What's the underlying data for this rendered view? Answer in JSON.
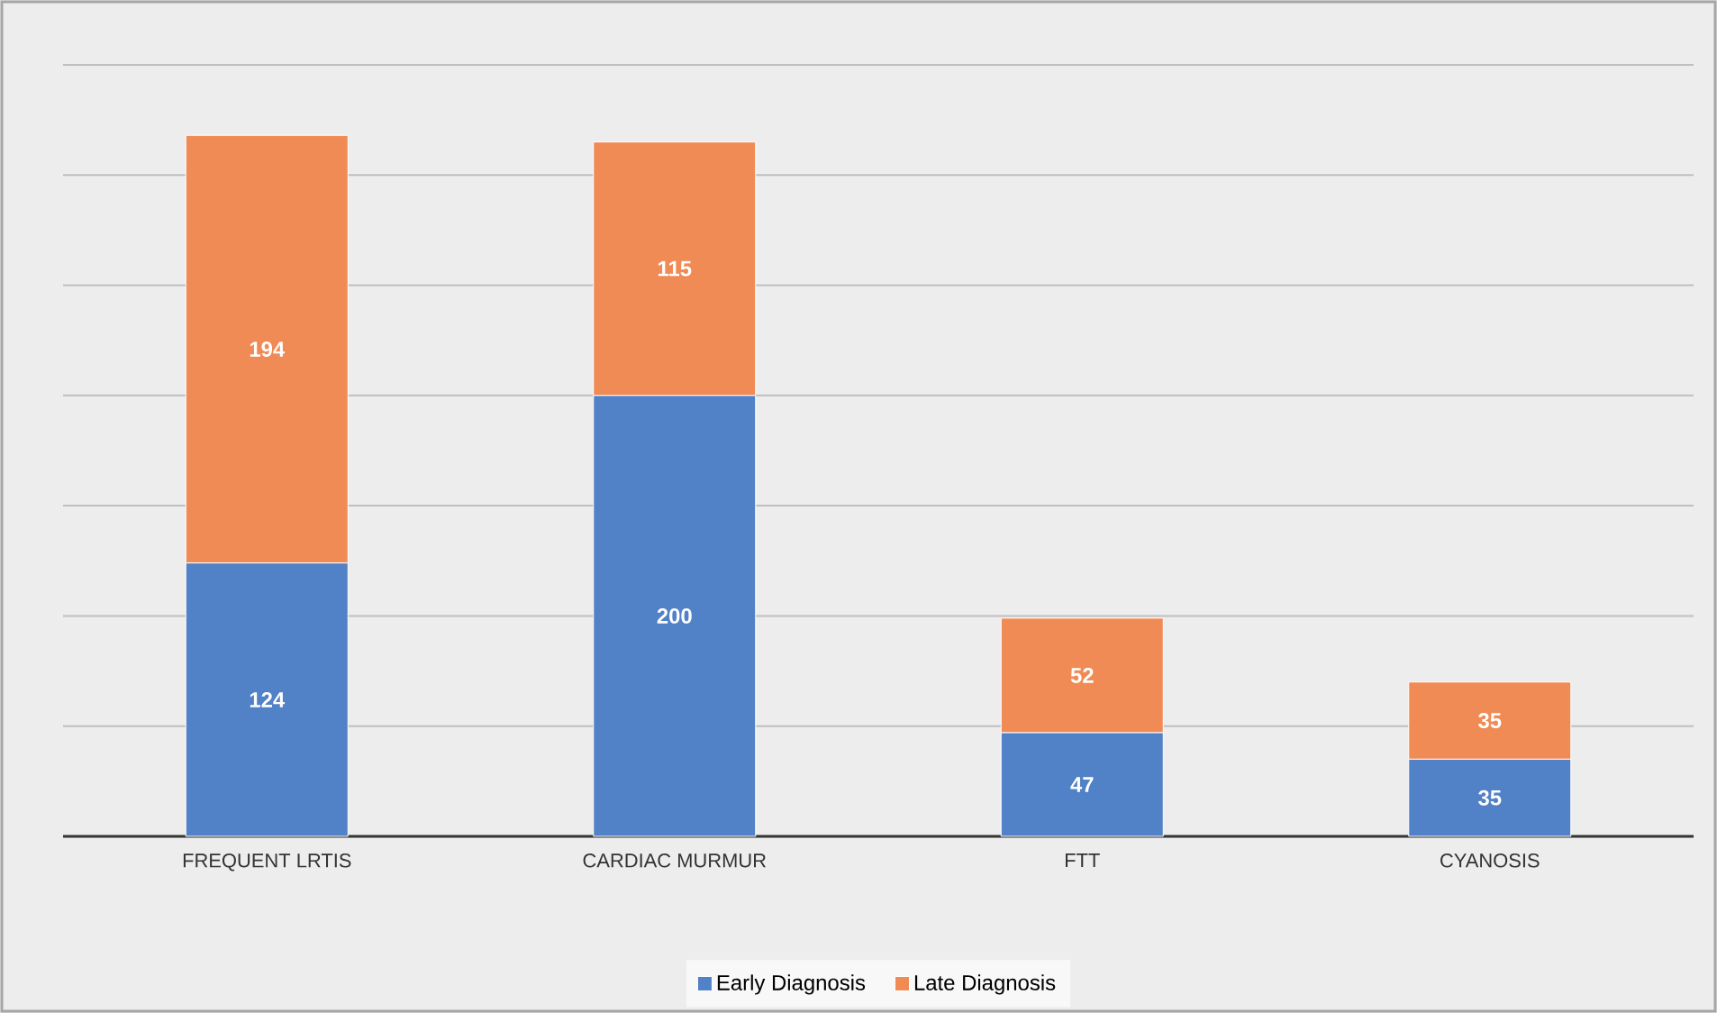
{
  "chart_data": {
    "type": "bar",
    "stacked": true,
    "categories": [
      "FREQUENT LRTIS",
      "CARDIAC MURMUR",
      "FTT",
      "CYANOSIS"
    ],
    "series": [
      {
        "name": "Early Diagnosis",
        "color": "#5181c6",
        "values": [
          124,
          200,
          47,
          35
        ]
      },
      {
        "name": "Late Diagnosis",
        "color": "#f08b55",
        "values": [
          194,
          115,
          52,
          35
        ]
      }
    ],
    "ylim": [
      0,
      350
    ],
    "yticks": [
      {
        "value": 0,
        "label": null
      },
      {
        "value": 50,
        "label": null
      },
      {
        "value": 100,
        "label": null
      },
      {
        "value": 150,
        "label": null
      },
      {
        "value": 200,
        "label": null
      },
      {
        "value": 250,
        "label": null
      },
      {
        "value": 300,
        "label": null
      },
      {
        "value": 350,
        "label": null
      }
    ],
    "tick_labels": "x",
    "grid": "y",
    "legend": "bottom",
    "data_labels": true
  }
}
